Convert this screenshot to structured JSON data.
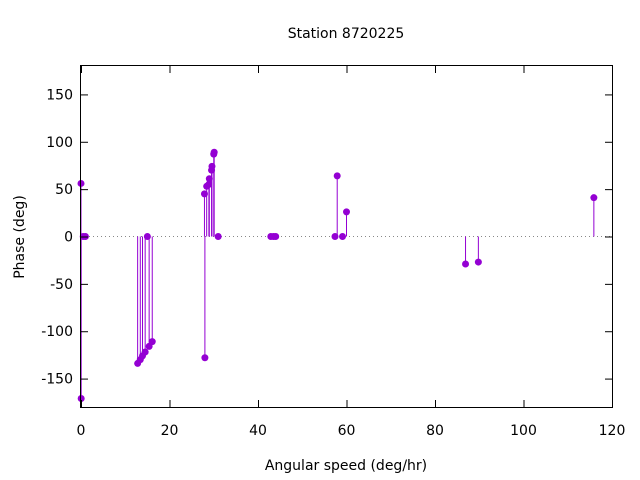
{
  "chart_data": {
    "type": "stem",
    "title": "Station 8720225",
    "xlabel": "Angular speed (deg/hr)",
    "ylabel": "Phase (deg)",
    "xlim": [
      0,
      120
    ],
    "ylim": [
      -180,
      180
    ],
    "xticks": [
      0,
      20,
      40,
      60,
      80,
      100,
      120
    ],
    "yticks": [
      -150,
      -100,
      -50,
      0,
      50,
      100,
      150
    ],
    "ytick_labels": [
      "-150",
      "-100",
      "-50",
      "0",
      "50",
      "100",
      "150"
    ],
    "zero_line": "dotted",
    "grid": false,
    "color": "#9400d3",
    "points": [
      {
        "x": 0.0,
        "y": 56
      },
      {
        "x": 0.04,
        "y": -171
      },
      {
        "x": 0.5,
        "y": 0
      },
      {
        "x": 1.0,
        "y": 0
      },
      {
        "x": 12.8,
        "y": -134
      },
      {
        "x": 13.4,
        "y": -130
      },
      {
        "x": 13.9,
        "y": -126
      },
      {
        "x": 14.5,
        "y": -122
      },
      {
        "x": 15.0,
        "y": 0
      },
      {
        "x": 15.4,
        "y": -116
      },
      {
        "x": 16.1,
        "y": -111
      },
      {
        "x": 27.9,
        "y": 45
      },
      {
        "x": 28.0,
        "y": -128
      },
      {
        "x": 28.4,
        "y": 53
      },
      {
        "x": 28.9,
        "y": 55
      },
      {
        "x": 29.0,
        "y": 61
      },
      {
        "x": 29.5,
        "y": 70
      },
      {
        "x": 29.6,
        "y": 74
      },
      {
        "x": 30.0,
        "y": 87
      },
      {
        "x": 30.1,
        "y": 89
      },
      {
        "x": 31.0,
        "y": 0
      },
      {
        "x": 42.9,
        "y": 0
      },
      {
        "x": 43.5,
        "y": 0
      },
      {
        "x": 44.0,
        "y": 0
      },
      {
        "x": 57.4,
        "y": 0
      },
      {
        "x": 57.9,
        "y": 64
      },
      {
        "x": 59.1,
        "y": 0
      },
      {
        "x": 60.0,
        "y": 26
      },
      {
        "x": 86.9,
        "y": -29
      },
      {
        "x": 89.8,
        "y": -27
      },
      {
        "x": 115.9,
        "y": 41
      }
    ]
  }
}
